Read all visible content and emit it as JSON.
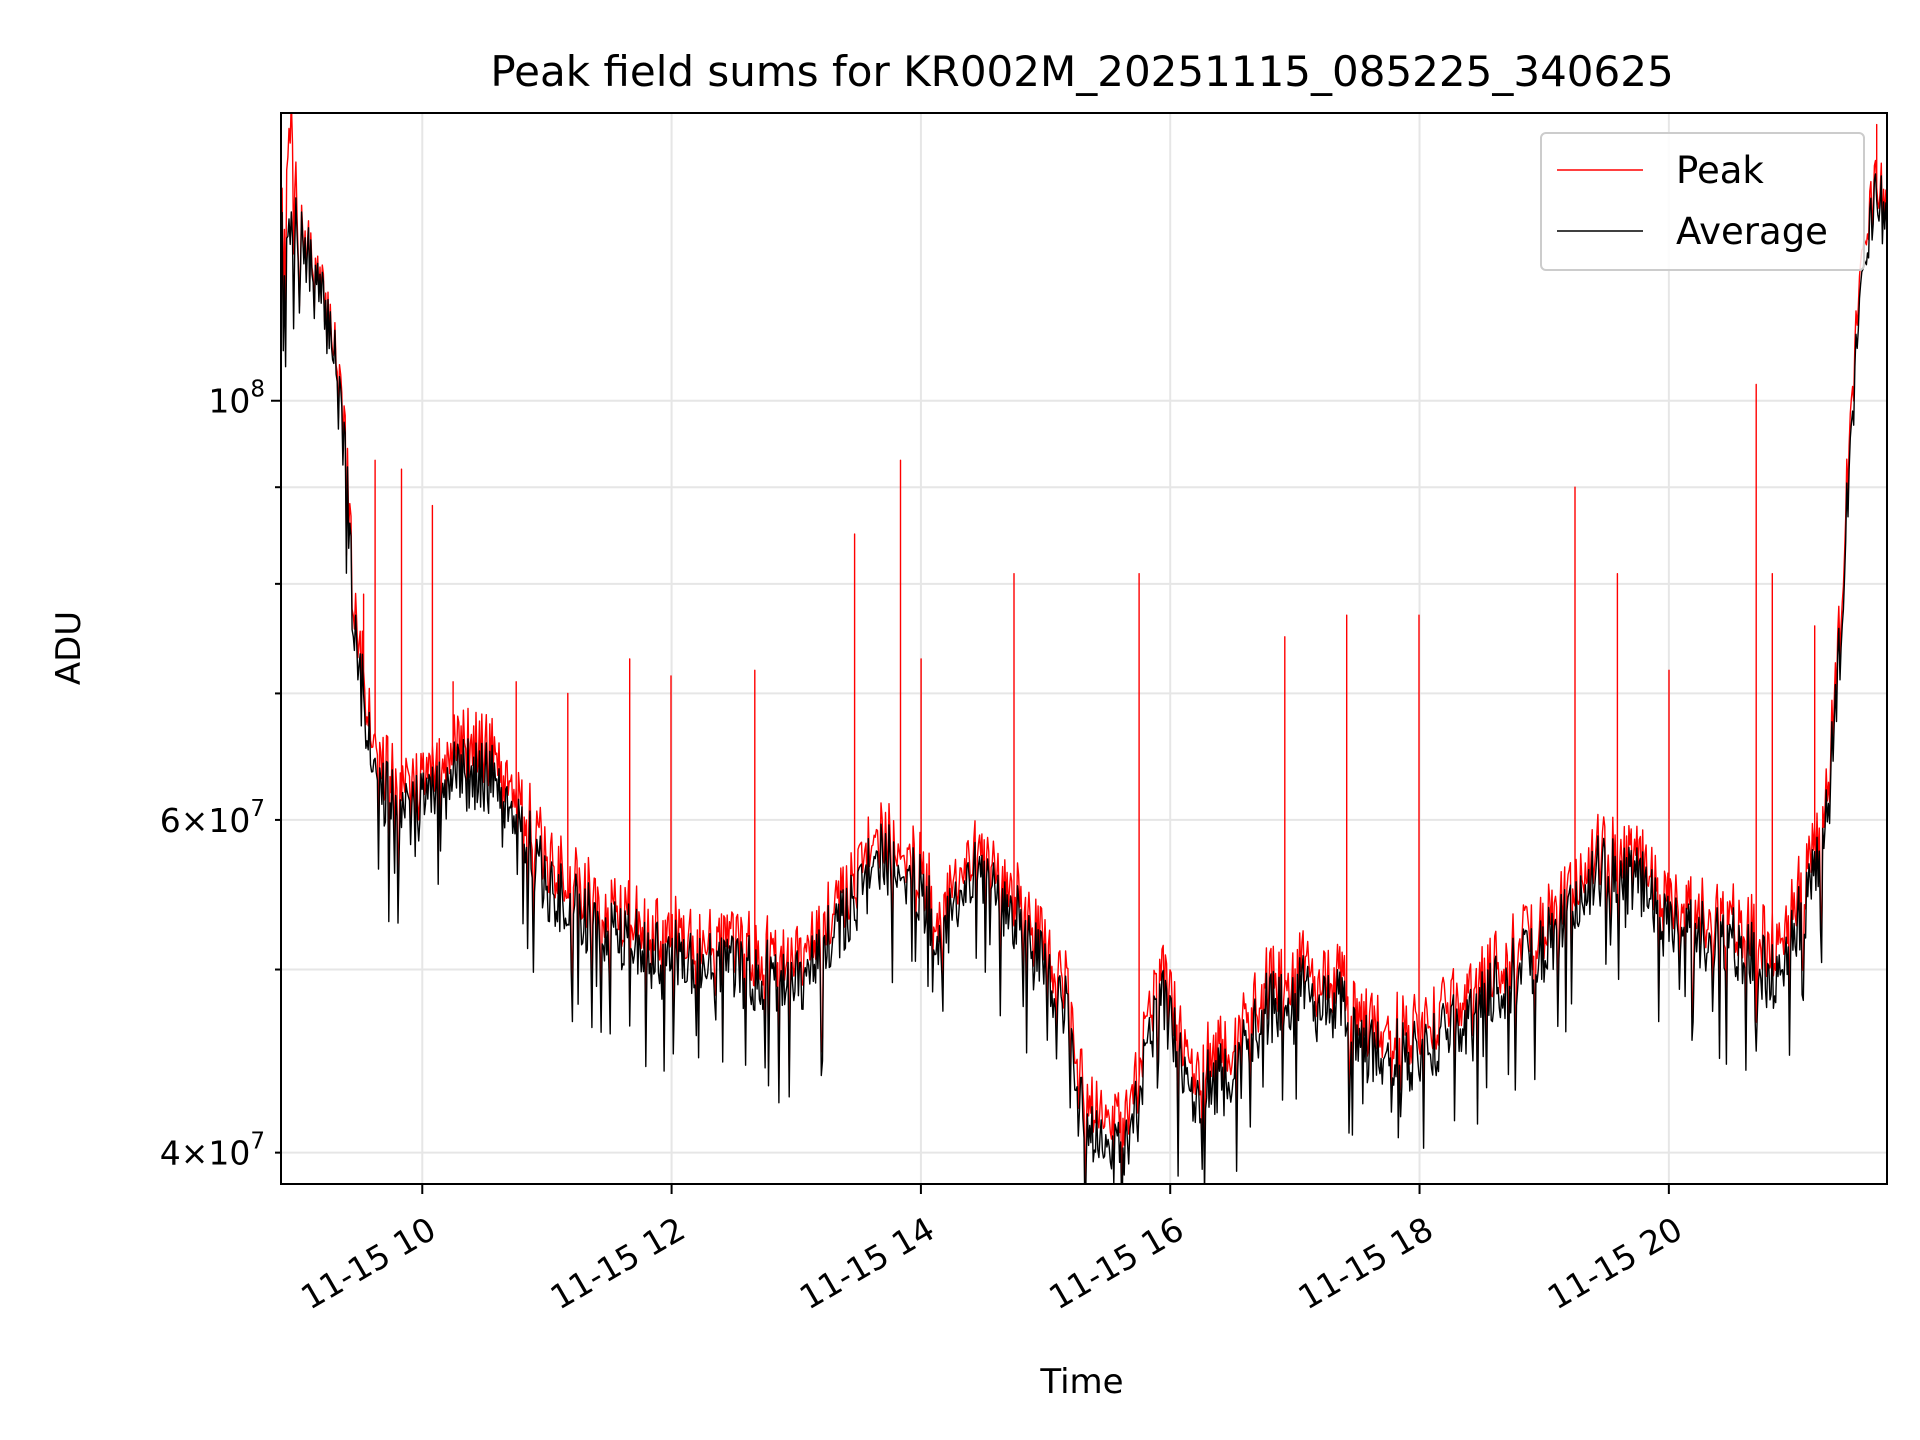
{
  "chart_data": {
    "type": "line",
    "title": "Peak field sums for KR002M_20251115_085225_340625",
    "xlabel": "Time",
    "ylabel": "ADU",
    "x_scale": "time",
    "y_scale": "log",
    "xlim": [
      "2025-11-15 08:52",
      "2025-11-15 21:45"
    ],
    "ylim": [
      38500000,
      142000000
    ],
    "grid": true,
    "legend_position": "upper right",
    "x_ticks": [
      {
        "value": "2025-11-15 10:00",
        "label": "11-15 10"
      },
      {
        "value": "2025-11-15 12:00",
        "label": "11-15 12"
      },
      {
        "value": "2025-11-15 14:00",
        "label": "11-15 14"
      },
      {
        "value": "2025-11-15 16:00",
        "label": "11-15 16"
      },
      {
        "value": "2025-11-15 18:00",
        "label": "11-15 18"
      },
      {
        "value": "2025-11-15 20:00",
        "label": "11-15 20"
      }
    ],
    "y_ticks": [
      {
        "value": 40000000,
        "mantissa": "4",
        "exponent": "7",
        "major": false
      },
      {
        "value": 50000000,
        "mantissa": "",
        "exponent": "",
        "major": false
      },
      {
        "value": 60000000,
        "mantissa": "6",
        "exponent": "7",
        "major": false
      },
      {
        "value": 70000000,
        "mantissa": "",
        "exponent": "",
        "major": false
      },
      {
        "value": 80000000,
        "mantissa": "",
        "exponent": "",
        "major": false
      },
      {
        "value": 90000000,
        "mantissa": "",
        "exponent": "",
        "major": false
      },
      {
        "value": 100000000,
        "mantissa": "",
        "exponent": "8",
        "major": true
      }
    ],
    "series": [
      {
        "name": "Peak",
        "color": "#ff0000",
        "points": [
          [
            "2025-11-15 08:52",
            123000000
          ],
          [
            "2025-11-15 08:57",
            140000000
          ],
          [
            "2025-11-15 09:00",
            124000000
          ],
          [
            "2025-11-15 09:10",
            115000000
          ],
          [
            "2025-11-15 09:18",
            108000000
          ],
          [
            "2025-11-15 09:23",
            95000000
          ],
          [
            "2025-11-15 09:27",
            78000000
          ],
          [
            "2025-11-15 09:33",
            70000000
          ],
          [
            "2025-11-15 09:40",
            65000000
          ],
          [
            "2025-11-15 09:50",
            62000000
          ],
          [
            "2025-11-15 10:00",
            63000000
          ],
          [
            "2025-11-15 10:12",
            66000000
          ],
          [
            "2025-11-15 10:24",
            66000000
          ],
          [
            "2025-11-15 10:36",
            65000000
          ],
          [
            "2025-11-15 10:48",
            62000000
          ],
          [
            "2025-11-15 11:00",
            57000000
          ],
          [
            "2025-11-15 11:30",
            54000000
          ],
          [
            "2025-11-15 12:00",
            52500000
          ],
          [
            "2025-11-15 12:30",
            51500000
          ],
          [
            "2025-11-15 13:00",
            51000000
          ],
          [
            "2025-11-15 13:20",
            54000000
          ],
          [
            "2025-11-15 13:40",
            59000000
          ],
          [
            "2025-11-15 13:55",
            58000000
          ],
          [
            "2025-11-15 14:10",
            53500000
          ],
          [
            "2025-11-15 14:30",
            58500000
          ],
          [
            "2025-11-15 14:45",
            55000000
          ],
          [
            "2025-11-15 15:00",
            51500000
          ],
          [
            "2025-11-15 15:10",
            49500000
          ],
          [
            "2025-11-15 15:20",
            42500000
          ],
          [
            "2025-11-15 15:40",
            42000000
          ],
          [
            "2025-11-15 15:55",
            50500000
          ],
          [
            "2025-11-15 16:10",
            44500000
          ],
          [
            "2025-11-15 16:30",
            45500000
          ],
          [
            "2025-11-15 16:45",
            49000000
          ],
          [
            "2025-11-15 17:00",
            50500000
          ],
          [
            "2025-11-15 17:20",
            49500000
          ],
          [
            "2025-11-15 17:35",
            47000000
          ],
          [
            "2025-11-15 18:00",
            46500000
          ],
          [
            "2025-11-15 18:30",
            49500000
          ],
          [
            "2025-11-15 19:00",
            53000000
          ],
          [
            "2025-11-15 19:25",
            58000000
          ],
          [
            "2025-11-15 19:45",
            57500000
          ],
          [
            "2025-11-15 20:00",
            54000000
          ],
          [
            "2025-11-15 20:30",
            53500000
          ],
          [
            "2025-11-15 20:50",
            51500000
          ],
          [
            "2025-11-15 21:05",
            56000000
          ],
          [
            "2025-11-15 21:15",
            60000000
          ],
          [
            "2025-11-15 21:22",
            75000000
          ],
          [
            "2025-11-15 21:28",
            100000000
          ],
          [
            "2025-11-15 21:35",
            125000000
          ],
          [
            "2025-11-15 21:40",
            131000000
          ],
          [
            "2025-11-15 21:45",
            129000000
          ]
        ],
        "spikes": [
          [
            "2025-11-15 09:32",
            79000000
          ],
          [
            "2025-11-15 09:37",
            93000000
          ],
          [
            "2025-11-15 09:50",
            92000000
          ],
          [
            "2025-11-15 10:05",
            88000000
          ],
          [
            "2025-11-15 10:15",
            71000000
          ],
          [
            "2025-11-15 10:45",
            71000000
          ],
          [
            "2025-11-15 11:10",
            70000000
          ],
          [
            "2025-11-15 11:40",
            73000000
          ],
          [
            "2025-11-15 12:00",
            71500000
          ],
          [
            "2025-11-15 12:40",
            72000000
          ],
          [
            "2025-11-15 13:28",
            85000000
          ],
          [
            "2025-11-15 13:50",
            93000000
          ],
          [
            "2025-11-15 14:00",
            73000000
          ],
          [
            "2025-11-15 14:45",
            81000000
          ],
          [
            "2025-11-15 15:45",
            81000000
          ],
          [
            "2025-11-15 16:55",
            75000000
          ],
          [
            "2025-11-15 17:25",
            77000000
          ],
          [
            "2025-11-15 18:00",
            77000000
          ],
          [
            "2025-11-15 19:15",
            90000000
          ],
          [
            "2025-11-15 19:35",
            81000000
          ],
          [
            "2025-11-15 20:00",
            72000000
          ],
          [
            "2025-11-15 20:42",
            102000000
          ],
          [
            "2025-11-15 20:50",
            81000000
          ],
          [
            "2025-11-15 21:10",
            76000000
          ],
          [
            "2025-11-15 21:40",
            140000000
          ]
        ]
      },
      {
        "name": "Average",
        "color": "#000000",
        "points": [
          [
            "2025-11-15 08:52",
            121000000
          ],
          [
            "2025-11-15 08:57",
            122000000
          ],
          [
            "2025-11-15 09:00",
            123000000
          ],
          [
            "2025-11-15 09:10",
            114000000
          ],
          [
            "2025-11-15 09:18",
            107000000
          ],
          [
            "2025-11-15 09:23",
            93000000
          ],
          [
            "2025-11-15 09:27",
            76000000
          ],
          [
            "2025-11-15 09:33",
            68000000
          ],
          [
            "2025-11-15 09:40",
            63000000
          ],
          [
            "2025-11-15 09:50",
            60000000
          ],
          [
            "2025-11-15 10:00",
            61500000
          ],
          [
            "2025-11-15 10:12",
            64000000
          ],
          [
            "2025-11-15 10:24",
            63500000
          ],
          [
            "2025-11-15 10:36",
            63000000
          ],
          [
            "2025-11-15 10:48",
            60000000
          ],
          [
            "2025-11-15 11:00",
            55000000
          ],
          [
            "2025-11-15 11:30",
            52500000
          ],
          [
            "2025-11-15 12:00",
            51000000
          ],
          [
            "2025-11-15 12:30",
            50000000
          ],
          [
            "2025-11-15 13:00",
            49500000
          ],
          [
            "2025-11-15 13:20",
            52500000
          ],
          [
            "2025-11-15 13:40",
            57500000
          ],
          [
            "2025-11-15 13:55",
            56500000
          ],
          [
            "2025-11-15 14:10",
            52000000
          ],
          [
            "2025-11-15 14:30",
            57000000
          ],
          [
            "2025-11-15 14:45",
            53500000
          ],
          [
            "2025-11-15 15:00",
            50000000
          ],
          [
            "2025-11-15 15:10",
            48000000
          ],
          [
            "2025-11-15 15:20",
            41000000
          ],
          [
            "2025-11-15 15:40",
            40500000
          ],
          [
            "2025-11-15 15:55",
            49000000
          ],
          [
            "2025-11-15 16:10",
            43000000
          ],
          [
            "2025-11-15 16:30",
            44000000
          ],
          [
            "2025-11-15 16:45",
            47500000
          ],
          [
            "2025-11-15 17:00",
            49000000
          ],
          [
            "2025-11-15 17:20",
            48000000
          ],
          [
            "2025-11-15 17:35",
            45500000
          ],
          [
            "2025-11-15 18:00",
            45000000
          ],
          [
            "2025-11-15 18:30",
            48000000
          ],
          [
            "2025-11-15 19:00",
            51500000
          ],
          [
            "2025-11-15 19:25",
            56500000
          ],
          [
            "2025-11-15 19:45",
            56000000
          ],
          [
            "2025-11-15 20:00",
            52500000
          ],
          [
            "2025-11-15 20:30",
            52000000
          ],
          [
            "2025-11-15 20:50",
            49500000
          ],
          [
            "2025-11-15 21:05",
            54000000
          ],
          [
            "2025-11-15 21:15",
            58500000
          ],
          [
            "2025-11-15 21:22",
            73000000
          ],
          [
            "2025-11-15 21:28",
            97000000
          ],
          [
            "2025-11-15 21:35",
            122000000
          ],
          [
            "2025-11-15 21:40",
            129000000
          ],
          [
            "2025-11-15 21:45",
            127000000
          ]
        ]
      }
    ]
  }
}
